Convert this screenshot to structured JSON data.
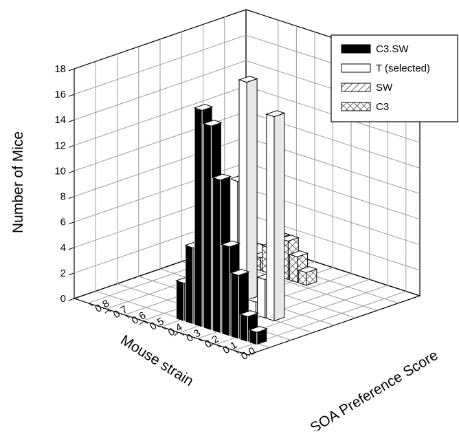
{
  "chart_data": {
    "type": "bar",
    "subtype": "3d-bar",
    "title": "",
    "ylabel": "Number of Mice",
    "xlabel": "Mouse strain",
    "zlabel": "SOA Preference Score",
    "ylim": [
      0,
      18
    ],
    "y_ticks": [
      "0",
      "2",
      "4",
      "6",
      "8",
      "10",
      "12",
      "14",
      "16",
      "18"
    ],
    "score_ticks": [
      "0.0",
      "0.1",
      "0.2",
      "0.3",
      "0.4",
      "0.5",
      "0.6",
      "0.7",
      "0.8"
    ],
    "grid": true,
    "legend_position": "top-right",
    "series": [
      {
        "name": "C3.SW",
        "pattern": "solid-black",
        "points": [
          {
            "score": 0.0,
            "count": 1
          },
          {
            "score": 0.05,
            "count": 2
          },
          {
            "score": 0.1,
            "count": 5
          },
          {
            "score": 0.15,
            "count": 7
          },
          {
            "score": 0.2,
            "count": 12
          },
          {
            "score": 0.25,
            "count": 16
          },
          {
            "score": 0.3,
            "count": 17
          },
          {
            "score": 0.35,
            "count": 6
          },
          {
            "score": 0.4,
            "count": 3
          }
        ]
      },
      {
        "name": "T (selected)",
        "pattern": "white",
        "points": [
          {
            "score": 0.15,
            "count": 16
          },
          {
            "score": 0.2,
            "count": 3
          },
          {
            "score": 0.25,
            "count": 1
          },
          {
            "score": 0.3,
            "count": 18
          },
          {
            "score": 0.35,
            "count": 10
          }
        ]
      },
      {
        "name": "SW",
        "pattern": "diagonal-hatch",
        "points": [
          {
            "score": 0.5,
            "count": 2
          },
          {
            "score": 0.55,
            "count": 7
          }
        ]
      },
      {
        "name": "C3",
        "pattern": "cross-hatch",
        "points": [
          {
            "score": 0.35,
            "count": 1
          },
          {
            "score": 0.4,
            "count": 2
          },
          {
            "score": 0.45,
            "count": 3
          },
          {
            "score": 0.5,
            "count": 3
          },
          {
            "score": 0.55,
            "count": 2
          },
          {
            "score": 0.6,
            "count": 1
          }
        ]
      }
    ]
  }
}
